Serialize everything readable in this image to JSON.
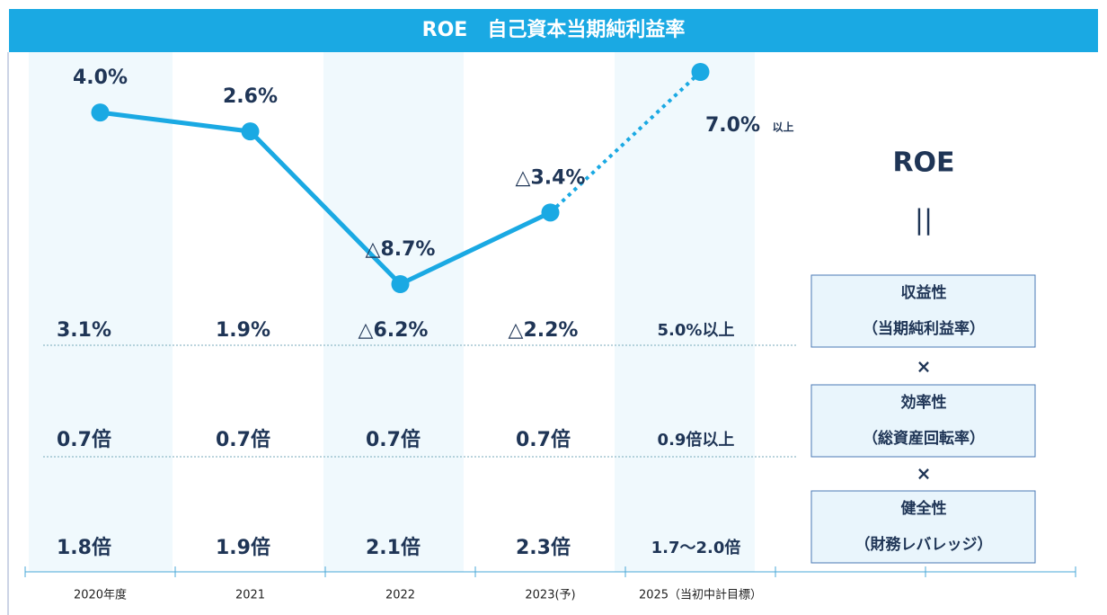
{
  "chart_data": {
    "type": "line",
    "title": "ROE　自己資本当期純利益率",
    "categories": [
      "2020年度",
      "2021",
      "2022",
      "2023(予)",
      "2025（当初中計目標）"
    ],
    "values": [
      4.0,
      2.6,
      -8.7,
      -3.4,
      7.0
    ],
    "value_labels": [
      "4.0%",
      "2.6%",
      "△8.7%",
      "△3.4%",
      "7.0%"
    ],
    "target_note": "以上",
    "color": "#1aa9e3",
    "dotted_last_segment": true,
    "table": {
      "rows": [
        {
          "label": "収益性",
          "sublabel": "（当期純利益率）",
          "cells": [
            "3.1%",
            "1.9%",
            "△6.2%",
            "△2.2%",
            "5.0%以上"
          ]
        },
        {
          "label": "効率性",
          "sublabel": "（総資産回転率）",
          "cells": [
            "0.7倍",
            "0.7倍",
            "0.7倍",
            "0.7倍",
            "0.9倍以上"
          ]
        },
        {
          "label": "健全性",
          "sublabel": "（財務レバレッジ）",
          "cells": [
            "1.8倍",
            "1.9倍",
            "2.1倍",
            "2.3倍",
            "1.7～2.0倍"
          ]
        }
      ]
    },
    "formula": {
      "title": "ROE",
      "equals": "||",
      "operator": "×"
    }
  }
}
